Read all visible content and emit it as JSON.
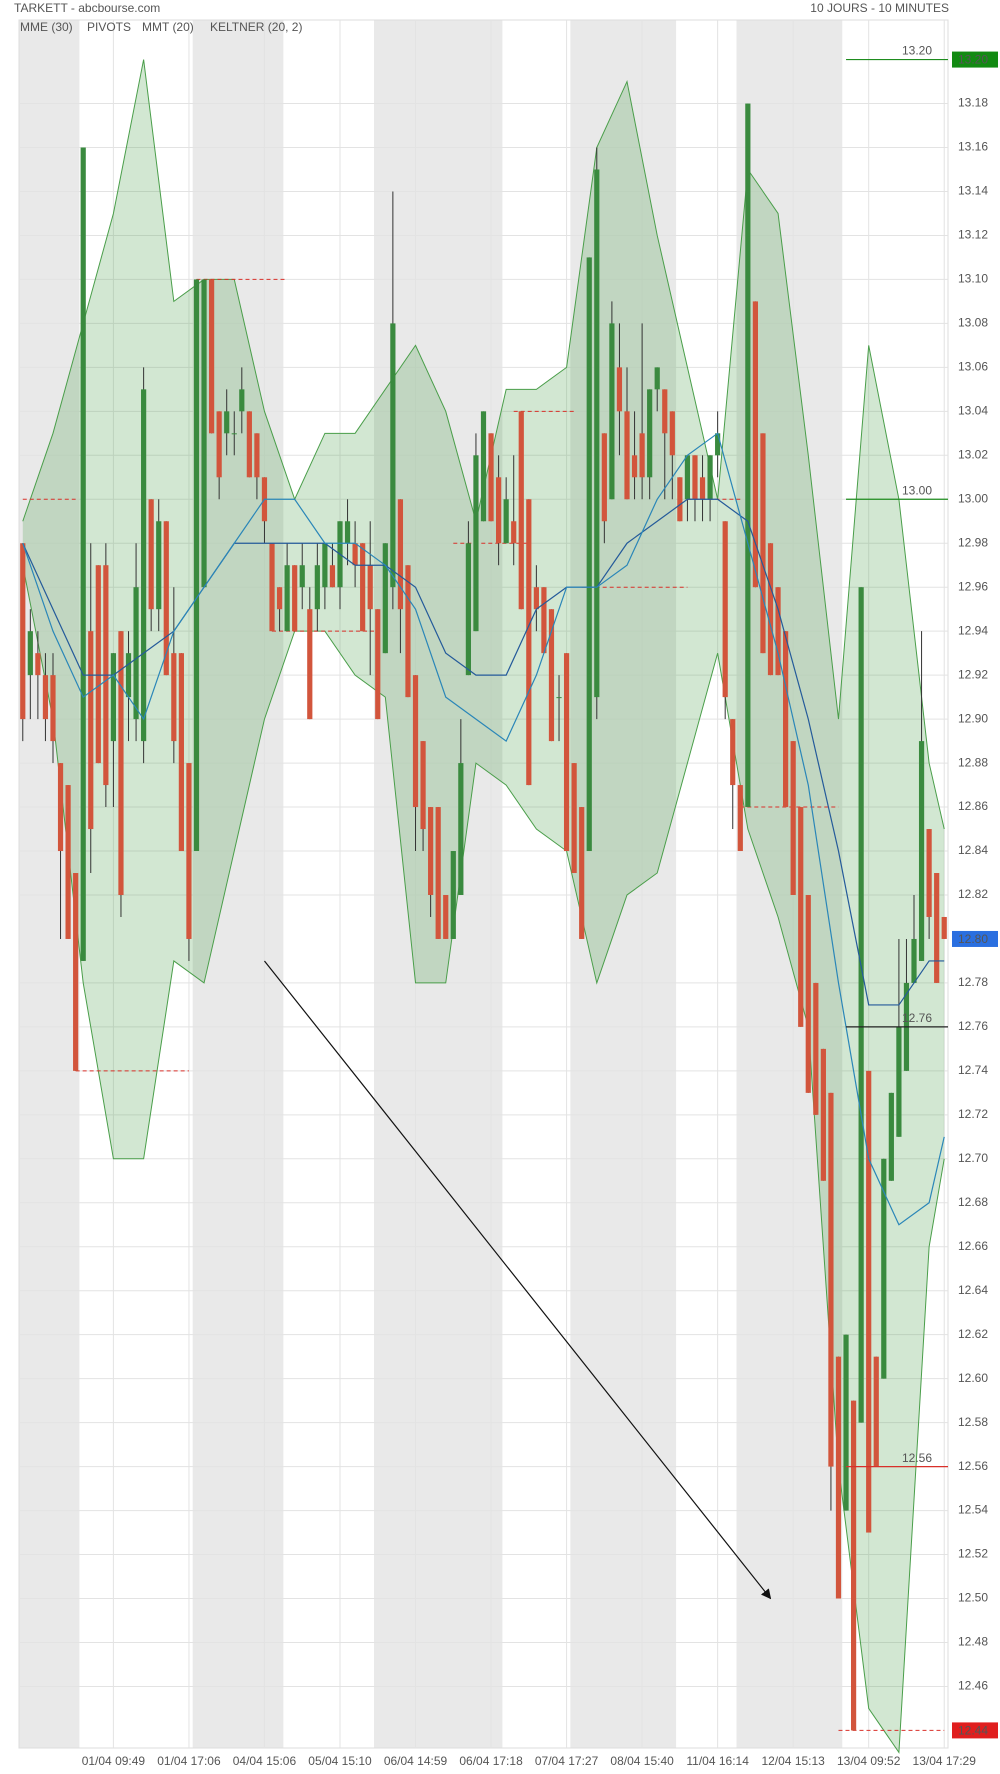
{
  "chart_data": {
    "type": "candlestick",
    "title": "TARKETT - abcbourse.com",
    "subtitle": "10 JOURS - 10 MINUTES",
    "categories": [
      null,
      null,
      null,
      null,
      null,
      null,
      null,
      null,
      null,
      null,
      null,
      null,
      "01/04 09:49",
      null,
      null,
      null,
      null,
      null,
      null,
      null,
      null,
      null,
      "01/04 17:06",
      null,
      null,
      null,
      null,
      null,
      null,
      null,
      null,
      null,
      "04/04 15:06",
      null,
      null,
      null,
      null,
      null,
      null,
      null,
      null,
      null,
      "05/04 15:10",
      null,
      null,
      null,
      null,
      null,
      null,
      null,
      null,
      null,
      "06/04 14:59",
      null,
      null,
      null,
      null,
      null,
      null,
      null,
      null,
      null,
      "06/04 17:18",
      null,
      null,
      null,
      null,
      null,
      null,
      null,
      null,
      null,
      "07/04 17:27",
      null,
      null,
      null,
      null,
      null,
      null,
      null,
      null,
      null,
      "08/04 15:40",
      null,
      null,
      null,
      null,
      null,
      null,
      null,
      null,
      null,
      "11/04 16:14",
      null,
      null,
      null,
      null,
      null,
      null,
      null,
      null,
      null,
      "12/04 15:13",
      null,
      null,
      null,
      null,
      null,
      null,
      null,
      null,
      null,
      "13/04 09:52",
      null,
      null,
      null,
      null,
      null,
      null,
      null,
      null,
      null,
      "13/04 17:29"
    ],
    "open": [
      12.98,
      12.92,
      12.93,
      12.92,
      12.92,
      12.88,
      12.87,
      12.83,
      12.79,
      12.94,
      12.97,
      12.97,
      12.89,
      12.94,
      12.91,
      12.9,
      12.89,
      13.0,
      12.95,
      12.99,
      12.93,
      12.93,
      12.88,
      12.84,
      12.96,
      13.1,
      13.04,
      13.03,
      13.03,
      13.04,
      13.04,
      13.03,
      13.01,
      12.98,
      12.96,
      12.94,
      12.97,
      12.96,
      12.95,
      12.95,
      12.96,
      12.97,
      12.96,
      12.98,
      12.98,
      12.98,
      12.97,
      12.95,
      12.93,
      12.96,
      13.0,
      12.97,
      12.92,
      12.89,
      12.86,
      12.86,
      12.82,
      12.8,
      12.82,
      12.92,
      12.94,
      12.99,
      13.03,
      13.01,
      12.98,
      12.99,
      13.04,
      13.0,
      12.96,
      12.96,
      12.95,
      12.91,
      12.93,
      12.88,
      12.86,
      12.84,
      12.91,
      13.03,
      13.0,
      13.06,
      13.04,
      13.02,
      13.03,
      13.01,
      13.05,
      13.05,
      13.04,
      13.01,
      13.0,
      13.02,
      13.01,
      13.0,
      13.02,
      12.99,
      12.9,
      12.87,
      12.86,
      13.09,
      13.03,
      12.98,
      12.96,
      12.94,
      12.89,
      12.86,
      12.82,
      12.78,
      12.75,
      12.73,
      12.61,
      12.54,
      12.59,
      12.58,
      12.74,
      12.61,
      12.6,
      12.69,
      12.71,
      12.74,
      12.78,
      12.79,
      12.85,
      12.83,
      12.81
    ],
    "high": [
      12.98,
      12.95,
      12.94,
      12.93,
      12.93,
      12.88,
      12.87,
      12.83,
      13.16,
      12.98,
      12.97,
      12.98,
      12.93,
      12.94,
      12.94,
      12.98,
      13.06,
      13.0,
      13.0,
      12.99,
      12.96,
      12.93,
      12.88,
      13.1,
      13.1,
      13.1,
      13.04,
      13.05,
      13.04,
      13.06,
      13.04,
      13.03,
      13.01,
      12.98,
      12.96,
      12.98,
      12.97,
      12.98,
      12.96,
      12.98,
      12.98,
      12.98,
      12.99,
      13.0,
      12.99,
      12.98,
      12.99,
      12.95,
      12.98,
      13.14,
      13.0,
      12.97,
      12.92,
      12.89,
      12.86,
      12.86,
      12.82,
      12.84,
      12.9,
      12.99,
      13.03,
      13.04,
      13.03,
      13.02,
      13.01,
      13.02,
      13.04,
      13.0,
      12.97,
      12.96,
      12.95,
      12.92,
      12.93,
      12.88,
      12.86,
      13.11,
      13.16,
      13.03,
      13.09,
      13.08,
      13.06,
      13.04,
      13.08,
      13.05,
      13.06,
      13.05,
      13.04,
      13.01,
      13.02,
      13.02,
      13.02,
      13.02,
      13.04,
      12.99,
      12.9,
      12.87,
      13.18,
      13.09,
      13.03,
      12.98,
      12.96,
      12.94,
      12.89,
      12.86,
      12.82,
      12.78,
      12.75,
      12.73,
      12.61,
      12.62,
      12.59,
      12.96,
      12.74,
      12.61,
      12.7,
      12.73,
      12.8,
      12.8,
      12.82,
      12.94,
      12.85,
      12.83,
      12.81
    ],
    "low": [
      12.89,
      12.9,
      12.9,
      12.89,
      12.88,
      12.8,
      12.8,
      12.74,
      12.79,
      12.83,
      12.88,
      12.86,
      12.86,
      12.81,
      12.89,
      12.89,
      12.88,
      12.94,
      12.94,
      12.92,
      12.88,
      12.84,
      12.79,
      12.84,
      12.96,
      13.03,
      13.0,
      13.02,
      13.02,
      13.03,
      13.01,
      13.0,
      12.98,
      12.94,
      12.94,
      12.94,
      12.94,
      12.95,
      12.9,
      12.94,
      12.95,
      12.96,
      12.95,
      12.97,
      12.96,
      12.94,
      12.92,
      12.9,
      12.93,
      12.95,
      12.93,
      12.91,
      12.84,
      12.84,
      12.81,
      12.8,
      12.8,
      12.8,
      12.82,
      12.92,
      12.94,
      12.99,
      12.99,
      12.97,
      12.98,
      12.97,
      12.95,
      12.87,
      12.94,
      12.93,
      12.89,
      12.89,
      12.84,
      12.83,
      12.8,
      12.84,
      12.9,
      12.98,
      13.0,
      13.02,
      13.0,
      13.0,
      13.0,
      13.0,
      13.04,
      13.0,
      13.0,
      12.99,
      12.99,
      12.99,
      12.99,
      12.99,
      13.01,
      12.9,
      12.85,
      12.84,
      12.86,
      12.96,
      12.93,
      12.92,
      12.92,
      12.86,
      12.82,
      12.76,
      12.73,
      12.72,
      12.69,
      12.54,
      12.5,
      12.54,
      12.44,
      12.58,
      12.53,
      12.56,
      12.6,
      12.69,
      12.71,
      12.74,
      12.78,
      12.79,
      12.8,
      12.78,
      12.8
    ],
    "close": [
      12.9,
      12.94,
      12.92,
      12.9,
      12.89,
      12.84,
      12.8,
      12.74,
      13.16,
      12.85,
      12.88,
      12.87,
      12.93,
      12.82,
      12.93,
      12.96,
      13.05,
      12.95,
      12.99,
      12.92,
      12.89,
      12.84,
      12.8,
      13.1,
      13.1,
      13.03,
      13.01,
      13.04,
      13.03,
      13.05,
      13.01,
      13.01,
      12.99,
      12.94,
      12.95,
      12.97,
      12.94,
      12.97,
      12.9,
      12.97,
      12.98,
      12.96,
      12.99,
      12.99,
      12.97,
      12.94,
      12.95,
      12.9,
      12.98,
      13.08,
      12.95,
      12.91,
      12.86,
      12.85,
      12.82,
      12.8,
      12.8,
      12.84,
      12.88,
      12.98,
      13.02,
      13.04,
      12.99,
      12.98,
      13.0,
      12.98,
      12.95,
      12.87,
      12.95,
      12.93,
      12.89,
      12.91,
      12.84,
      12.83,
      12.8,
      13.11,
      13.15,
      12.99,
      13.08,
      13.04,
      13.0,
      13.01,
      13.01,
      13.05,
      13.06,
      13.03,
      13.02,
      12.99,
      13.02,
      13.0,
      13.0,
      13.02,
      13.03,
      12.91,
      12.87,
      12.84,
      13.18,
      12.96,
      12.93,
      12.92,
      12.92,
      12.86,
      12.82,
      12.76,
      12.73,
      12.72,
      12.69,
      12.56,
      12.5,
      12.62,
      12.44,
      12.96,
      12.53,
      12.56,
      12.7,
      12.73,
      12.76,
      12.78,
      12.8,
      12.89,
      12.81,
      12.78,
      12.8
    ],
    "up_color": "#3a8a3f",
    "down_color": "#d2553c",
    "indicator_x": [
      0,
      4,
      8,
      12,
      16,
      20,
      24,
      28,
      32,
      36,
      40,
      44,
      48,
      52,
      56,
      60,
      64,
      68,
      72,
      76,
      80,
      84,
      88,
      92,
      96,
      100,
      104,
      108,
      112,
      116,
      120,
      122
    ],
    "keltner": {
      "name": "KELTNER (20, 2)",
      "color": "#4a9e4a",
      "upper": [
        12.99,
        13.03,
        13.08,
        13.13,
        13.2,
        13.09,
        13.1,
        13.1,
        13.04,
        13.0,
        13.03,
        13.03,
        13.05,
        13.07,
        13.04,
        12.99,
        13.05,
        13.05,
        13.06,
        13.16,
        13.19,
        13.12,
        13.06,
        13.0,
        13.15,
        13.13,
        13.02,
        12.9,
        13.07,
        13.0,
        12.88,
        12.85
      ],
      "lower": [
        12.97,
        12.9,
        12.78,
        12.7,
        12.7,
        12.79,
        12.78,
        12.84,
        12.9,
        12.94,
        12.94,
        12.92,
        12.91,
        12.78,
        12.78,
        12.88,
        12.87,
        12.85,
        12.84,
        12.78,
        12.82,
        12.83,
        12.88,
        12.93,
        12.85,
        12.81,
        12.76,
        12.56,
        12.45,
        12.43,
        12.66,
        12.7
      ]
    },
    "mme": {
      "name": "MME (30)",
      "color": "#2a6fc0",
      "line_color": "#245a9a",
      "values": [
        12.98,
        12.95,
        12.92,
        12.92,
        12.93,
        12.94,
        12.96,
        12.98,
        12.98,
        12.98,
        12.98,
        12.97,
        12.97,
        12.96,
        12.93,
        12.92,
        12.92,
        12.95,
        12.96,
        12.96,
        12.98,
        12.99,
        13.0,
        13.0,
        12.99,
        12.95,
        12.9,
        12.84,
        12.77,
        12.77,
        12.79,
        12.79
      ]
    },
    "mmt": {
      "name": "MMT (20)",
      "color": "#2a6fc0",
      "line_color": "#2a86b8",
      "values": [
        12.98,
        12.94,
        12.91,
        12.92,
        12.9,
        12.94,
        12.96,
        12.98,
        13.0,
        13.0,
        12.98,
        12.98,
        12.97,
        12.95,
        12.91,
        12.9,
        12.89,
        12.92,
        12.96,
        12.96,
        12.97,
        13.0,
        13.02,
        13.03,
        12.98,
        12.93,
        12.87,
        12.78,
        12.7,
        12.67,
        12.68,
        12.71
      ]
    },
    "pivots": {
      "name": "PIVOTS",
      "color": "#555555",
      "line_color": "#d9302a",
      "lines": [
        {
          "value": 13.0,
          "from": 0,
          "to": 7
        },
        {
          "value": 12.74,
          "from": 7,
          "to": 22
        },
        {
          "value": 13.1,
          "from": 23,
          "to": 35
        },
        {
          "value": 12.94,
          "from": 33,
          "to": 47
        },
        {
          "value": 12.98,
          "from": 57,
          "to": 67
        },
        {
          "value": 13.04,
          "from": 65,
          "to": 73
        },
        {
          "value": 12.96,
          "from": 74,
          "to": 88
        },
        {
          "value": 13.0,
          "from": 88,
          "to": 95
        },
        {
          "value": 12.86,
          "from": 95,
          "to": 108
        },
        {
          "value": 12.44,
          "from": 108,
          "to": 122
        }
      ]
    },
    "sessions": [
      [
        0,
        7
      ],
      [
        23,
        34
      ],
      [
        47,
        63
      ],
      [
        73,
        86
      ],
      [
        95,
        108
      ]
    ],
    "levels": [
      {
        "value": 13.2,
        "label": "13.20",
        "color": "#1e8c1e",
        "from": 109
      },
      {
        "value": 13.0,
        "label": "13.00",
        "color": "#1e8c1e",
        "from": 109
      },
      {
        "value": 12.76,
        "label": "12.76",
        "color": "#222222",
        "from": 109
      },
      {
        "value": 12.56,
        "label": "12.56",
        "color": "#d9302a",
        "from": 109
      }
    ],
    "tags": [
      {
        "value": 13.2,
        "label": "13.20",
        "color": "#128a12"
      },
      {
        "value": 12.8,
        "label": "12.80",
        "color": "#2a6fe0"
      },
      {
        "value": 12.44,
        "label": "12.44",
        "color": "#e01e1e"
      }
    ],
    "arrow": {
      "from": [
        32,
        12.79
      ],
      "to": [
        99,
        12.5
      ]
    },
    "ylim": [
      12.432,
      13.218
    ],
    "yticks": [
      12.46,
      12.48,
      {
        "value": 12.5,
        "label": "12.50"
      },
      12.52,
      12.54,
      12.56,
      12.58,
      {
        "value": 12.6,
        "label": "12.60"
      },
      12.62,
      12.64,
      12.66,
      12.68,
      {
        "value": 12.7,
        "label": "12.70"
      },
      12.72,
      12.74,
      12.76,
      12.78,
      12.82,
      12.84,
      12.86,
      12.88,
      {
        "value": 12.9,
        "label": "12.90"
      },
      12.92,
      12.94,
      12.96,
      12.98,
      {
        "value": 13.0,
        "label": "13.00"
      },
      13.02,
      13.04,
      13.06,
      13.08,
      {
        "value": 13.1,
        "label": "13.10"
      },
      13.12,
      13.14,
      13.16,
      13.18
    ],
    "grid": true
  }
}
